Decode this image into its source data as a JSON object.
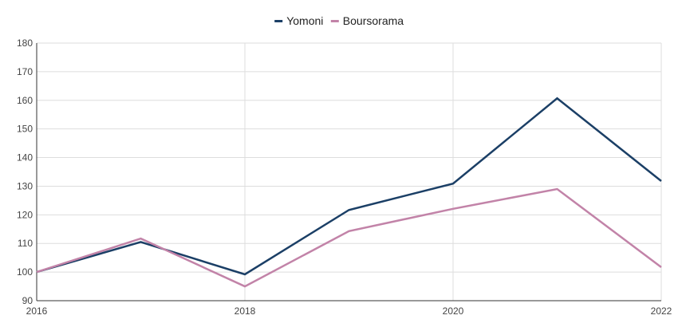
{
  "chart_data": {
    "type": "line",
    "title": "",
    "xlabel": "",
    "ylabel": "",
    "x": [
      2016,
      2017,
      2018,
      2019,
      2020,
      2021,
      2022
    ],
    "xlim": [
      2016,
      2022
    ],
    "ylim": [
      90,
      180
    ],
    "x_ticks": [
      "2016",
      "2018",
      "2020",
      "2022"
    ],
    "y_ticks": [
      "90",
      "100",
      "110",
      "120",
      "130",
      "140",
      "150",
      "160",
      "170",
      "180"
    ],
    "grid": true,
    "legend_position": "top-center",
    "series": [
      {
        "name": "Yomoni",
        "color": "#1b3f66",
        "values": [
          100,
          110.5,
          99.2,
          121.7,
          130.9,
          160.7,
          131.8
        ]
      },
      {
        "name": "Boursorama",
        "color": "#c283a8",
        "values": [
          100,
          111.7,
          95.0,
          114.3,
          122.1,
          129.0,
          101.7
        ]
      }
    ]
  }
}
